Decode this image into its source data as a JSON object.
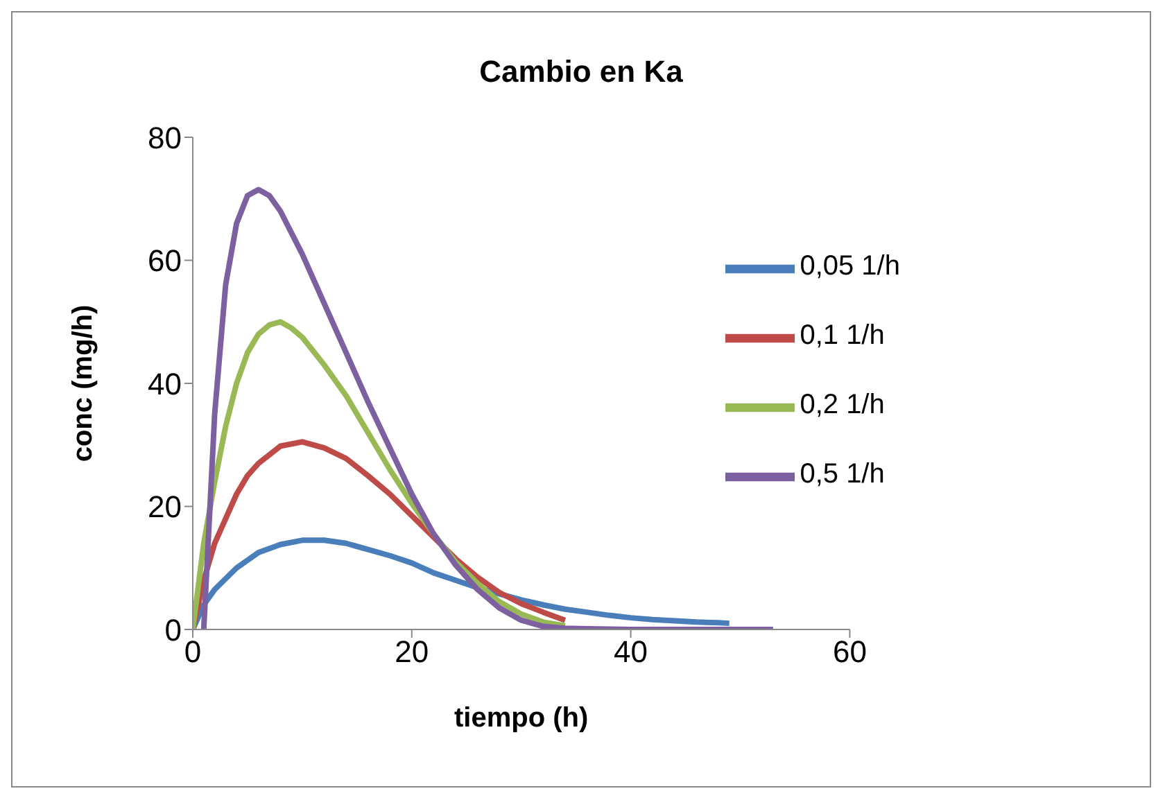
{
  "chart_data": {
    "type": "line",
    "title": "Cambio en Ka",
    "xlabel": "tiempo (h)",
    "ylabel": "conc (mg/h)",
    "xlim": [
      0,
      60
    ],
    "xticks": [
      0,
      20,
      40,
      60
    ],
    "ylim": [
      0,
      80
    ],
    "yticks": [
      0,
      20,
      40,
      60,
      80
    ],
    "grid": false,
    "legend": "right",
    "marker": "none",
    "line_style": "solid",
    "series": [
      {
        "name": "0,05 1/h",
        "color": "#4a7ebb",
        "x": [
          0,
          1,
          2,
          4,
          6,
          8,
          10,
          12,
          14,
          16,
          18,
          20,
          22,
          24,
          26,
          28,
          30,
          32,
          34,
          36,
          38,
          40,
          42,
          44,
          46,
          48,
          49
        ],
        "values": [
          0,
          4,
          6.5,
          10,
          12.5,
          13.8,
          14.5,
          14.5,
          14,
          13,
          12,
          10.8,
          9.2,
          8,
          6.8,
          5.8,
          4.8,
          4,
          3.3,
          2.8,
          2.3,
          1.9,
          1.6,
          1.4,
          1.2,
          1.1,
          1
        ]
      },
      {
        "name": "0,1 1/h",
        "color": "#be4b48",
        "x": [
          0,
          1,
          2,
          4,
          5,
          6,
          8,
          10,
          12,
          14,
          16,
          18,
          20,
          22,
          24,
          26,
          28,
          30,
          32,
          34
        ],
        "values": [
          0,
          8,
          14,
          22,
          25,
          27,
          29.8,
          30.5,
          29.5,
          27.8,
          25,
          22,
          18.5,
          15,
          11.5,
          8.5,
          6,
          4.2,
          2.8,
          1.5
        ]
      },
      {
        "name": "0,2 1/h",
        "color": "#98b954",
        "x": [
          0,
          1,
          2,
          3,
          4,
          5,
          6,
          7,
          8,
          9,
          10,
          12,
          14,
          16,
          18,
          20,
          22,
          24,
          26,
          28,
          30,
          32,
          34
        ],
        "values": [
          0,
          14,
          24,
          33,
          40,
          45,
          48,
          49.5,
          50,
          49,
          47.5,
          43,
          38,
          32,
          26,
          20.5,
          15.5,
          11,
          7.5,
          4.5,
          2.5,
          1.2,
          0.6
        ]
      },
      {
        "name": "0,5 1/h",
        "color": "#7d60a0",
        "x": [
          1,
          2,
          3,
          4,
          5,
          6,
          7,
          8,
          10,
          12,
          14,
          16,
          18,
          20,
          22,
          24,
          26,
          28,
          30,
          32,
          34,
          36,
          40,
          53
        ],
        "values": [
          0,
          35,
          56,
          66,
          70.5,
          71.5,
          70.5,
          68,
          61,
          53,
          45,
          37,
          29.5,
          22,
          15.5,
          10.5,
          6.5,
          3.5,
          1.5,
          0.5,
          0.2,
          0.1,
          0,
          0
        ]
      }
    ]
  }
}
